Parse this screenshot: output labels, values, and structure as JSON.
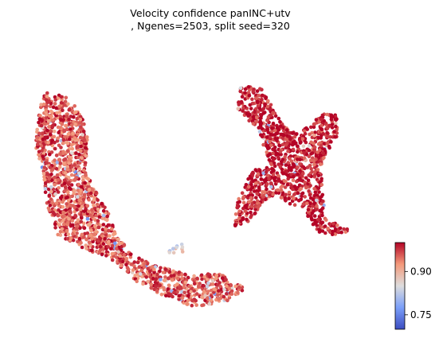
{
  "chart_data": {
    "type": "scatter",
    "title_lines": [
      "Velocity confidence panINC+utv",
      ", Ngenes=2503, split seed=320"
    ],
    "xlabel": "",
    "ylabel": "",
    "axes_visible": false,
    "grid": false,
    "colormap": "coolwarm",
    "colorbar": {
      "min": 0.7,
      "max": 1.0,
      "ticks": [
        0.75,
        0.9
      ],
      "tick_labels": [
        "0.75",
        "0.90"
      ]
    },
    "clusters": [
      {
        "name": "",
        "mean_confidence": 0.96,
        "point_count": 1700,
        "outline": [
          [
            0.07,
            0.17
          ],
          [
            0.13,
            0.18
          ],
          [
            0.17,
            0.24
          ],
          [
            0.19,
            0.34
          ],
          [
            0.18,
            0.43
          ],
          [
            0.21,
            0.52
          ],
          [
            0.24,
            0.58
          ],
          [
            0.26,
            0.66
          ],
          [
            0.3,
            0.73
          ],
          [
            0.38,
            0.78
          ],
          [
            0.46,
            0.81
          ],
          [
            0.52,
            0.8
          ],
          [
            0.57,
            0.82
          ],
          [
            0.6,
            0.86
          ],
          [
            0.55,
            0.9
          ],
          [
            0.47,
            0.92
          ],
          [
            0.4,
            0.89
          ],
          [
            0.31,
            0.83
          ],
          [
            0.26,
            0.76
          ],
          [
            0.17,
            0.71
          ],
          [
            0.1,
            0.66
          ],
          [
            0.08,
            0.55
          ],
          [
            0.07,
            0.44
          ],
          [
            0.05,
            0.35
          ],
          [
            0.06,
            0.25
          ]
        ]
      },
      {
        "name": "",
        "mean_confidence": 0.99,
        "point_count": 1100,
        "outline": [
          [
            0.58,
            0.14
          ],
          [
            0.65,
            0.16
          ],
          [
            0.68,
            0.25
          ],
          [
            0.72,
            0.31
          ],
          [
            0.77,
            0.29
          ],
          [
            0.8,
            0.24
          ],
          [
            0.84,
            0.25
          ],
          [
            0.84,
            0.33
          ],
          [
            0.8,
            0.41
          ],
          [
            0.8,
            0.5
          ],
          [
            0.81,
            0.61
          ],
          [
            0.86,
            0.64
          ],
          [
            0.88,
            0.66
          ],
          [
            0.8,
            0.67
          ],
          [
            0.77,
            0.62
          ],
          [
            0.75,
            0.57
          ],
          [
            0.71,
            0.56
          ],
          [
            0.68,
            0.53
          ],
          [
            0.65,
            0.55
          ],
          [
            0.61,
            0.62
          ],
          [
            0.57,
            0.64
          ],
          [
            0.58,
            0.55
          ],
          [
            0.61,
            0.46
          ],
          [
            0.66,
            0.4
          ],
          [
            0.63,
            0.3
          ],
          [
            0.58,
            0.23
          ]
        ]
      },
      {
        "name": "",
        "mean_confidence": 0.86,
        "point_count": 12,
        "outline": [
          [
            0.4,
            0.7
          ],
          [
            0.44,
            0.7
          ],
          [
            0.44,
            0.73
          ],
          [
            0.4,
            0.73
          ]
        ]
      }
    ]
  }
}
